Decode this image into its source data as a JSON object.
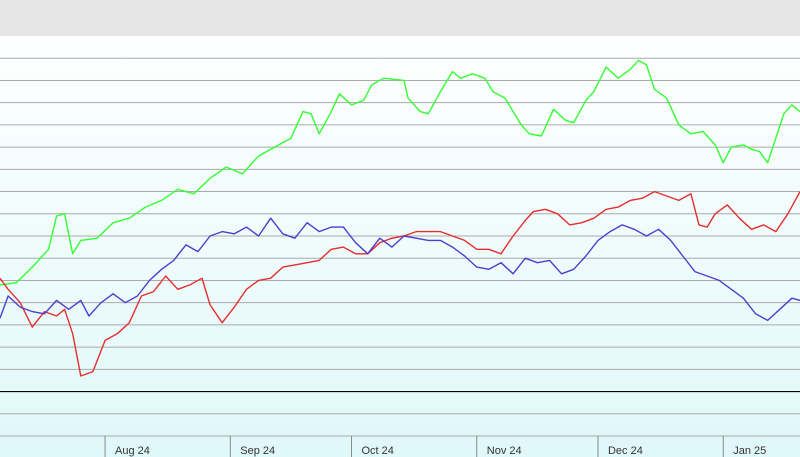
{
  "chart_data": {
    "type": "line",
    "title": "",
    "xlabel": "",
    "ylabel": "",
    "x_tick_labels": [
      "Aug 24",
      "Sep 24",
      "Oct 24",
      "Nov 24",
      "Dec 24",
      "Jan 25"
    ],
    "x_tick_dates": [
      "2024-08-01",
      "2024-09-01",
      "2024-10-01",
      "2024-11-01",
      "2024-12-01",
      "2025-01-01"
    ],
    "xlim": [
      "2024-07-06",
      "2025-01-20"
    ],
    "ylim": [
      0,
      18
    ],
    "grid": true,
    "legend": "none",
    "y_tick_labels_visible": false,
    "baseline_y": 2,
    "colors": {
      "green_series": "#33ff33",
      "red_series": "#e62e2e",
      "blue_series": "#4d3fcc",
      "grid": "#aaaaaa",
      "header": "#e6e6e6",
      "band_top": "#ffffff",
      "band_bottom": "#dff8f9",
      "baseline": "#000000"
    },
    "series": [
      {
        "color_key": "green_series",
        "points": [
          [
            "2024-07-06",
            6.8
          ],
          [
            "2024-07-10",
            6.9
          ],
          [
            "2024-07-14",
            7.6
          ],
          [
            "2024-07-18",
            8.4
          ],
          [
            "2024-07-20",
            9.9
          ],
          [
            "2024-07-22",
            10.0
          ],
          [
            "2024-07-24",
            8.2
          ],
          [
            "2024-07-26",
            8.8
          ],
          [
            "2024-07-30",
            8.9
          ],
          [
            "2024-08-03",
            9.6
          ],
          [
            "2024-08-07",
            9.8
          ],
          [
            "2024-08-11",
            10.3
          ],
          [
            "2024-08-15",
            10.6
          ],
          [
            "2024-08-19",
            11.1
          ],
          [
            "2024-08-23",
            10.9
          ],
          [
            "2024-08-27",
            11.6
          ],
          [
            "2024-08-31",
            12.1
          ],
          [
            "2024-09-04",
            11.8
          ],
          [
            "2024-09-08",
            12.6
          ],
          [
            "2024-09-12",
            13.0
          ],
          [
            "2024-09-16",
            13.4
          ],
          [
            "2024-09-19",
            14.6
          ],
          [
            "2024-09-21",
            14.5
          ],
          [
            "2024-09-23",
            13.6
          ],
          [
            "2024-09-26",
            14.6
          ],
          [
            "2024-09-28",
            15.4
          ],
          [
            "2024-10-01",
            14.9
          ],
          [
            "2024-10-04",
            15.1
          ],
          [
            "2024-10-06",
            15.8
          ],
          [
            "2024-10-09",
            16.1
          ],
          [
            "2024-10-14",
            16.0
          ],
          [
            "2024-10-15",
            15.2
          ],
          [
            "2024-10-18",
            14.6
          ],
          [
            "2024-10-20",
            14.5
          ],
          [
            "2024-10-23",
            15.5
          ],
          [
            "2024-10-26",
            16.4
          ],
          [
            "2024-10-28",
            16.1
          ],
          [
            "2024-10-31",
            16.3
          ],
          [
            "2024-11-03",
            16.1
          ],
          [
            "2024-11-05",
            15.5
          ],
          [
            "2024-11-08",
            15.2
          ],
          [
            "2024-11-10",
            14.6
          ],
          [
            "2024-11-12",
            14.0
          ],
          [
            "2024-11-14",
            13.6
          ],
          [
            "2024-11-17",
            13.5
          ],
          [
            "2024-11-20",
            14.7
          ],
          [
            "2024-11-23",
            14.2
          ],
          [
            "2024-11-25",
            14.1
          ],
          [
            "2024-11-28",
            15.1
          ],
          [
            "2024-11-30",
            15.5
          ],
          [
            "2024-12-03",
            16.6
          ],
          [
            "2024-12-06",
            16.1
          ],
          [
            "2024-12-09",
            16.5
          ],
          [
            "2024-12-11",
            16.9
          ],
          [
            "2024-12-13",
            16.7
          ],
          [
            "2024-12-15",
            15.6
          ],
          [
            "2024-12-18",
            15.2
          ],
          [
            "2024-12-21",
            14.0
          ],
          [
            "2024-12-24",
            13.6
          ],
          [
            "2024-12-27",
            13.7
          ],
          [
            "2024-12-30",
            13.1
          ],
          [
            "2025-01-01",
            12.3
          ],
          [
            "2025-01-03",
            13.0
          ],
          [
            "2025-01-06",
            13.1
          ],
          [
            "2025-01-08",
            12.9
          ],
          [
            "2025-01-10",
            12.8
          ],
          [
            "2025-01-12",
            12.3
          ],
          [
            "2025-01-14",
            13.4
          ],
          [
            "2025-01-16",
            14.5
          ],
          [
            "2025-01-18",
            14.9
          ],
          [
            "2025-01-20",
            14.6
          ]
        ]
      },
      {
        "color_key": "red_series",
        "points": [
          [
            "2024-07-06",
            7.1
          ],
          [
            "2024-07-08",
            6.6
          ],
          [
            "2024-07-11",
            6.0
          ],
          [
            "2024-07-14",
            4.9
          ],
          [
            "2024-07-17",
            5.6
          ],
          [
            "2024-07-20",
            5.4
          ],
          [
            "2024-07-22",
            5.7
          ],
          [
            "2024-07-24",
            4.6
          ],
          [
            "2024-07-26",
            2.7
          ],
          [
            "2024-07-29",
            2.9
          ],
          [
            "2024-08-01",
            4.3
          ],
          [
            "2024-08-04",
            4.6
          ],
          [
            "2024-08-07",
            5.1
          ],
          [
            "2024-08-10",
            6.3
          ],
          [
            "2024-08-13",
            6.5
          ],
          [
            "2024-08-16",
            7.2
          ],
          [
            "2024-08-19",
            6.6
          ],
          [
            "2024-08-22",
            6.8
          ],
          [
            "2024-08-25",
            7.1
          ],
          [
            "2024-08-27",
            5.9
          ],
          [
            "2024-08-30",
            5.1
          ],
          [
            "2024-09-02",
            5.8
          ],
          [
            "2024-09-05",
            6.6
          ],
          [
            "2024-09-08",
            7.0
          ],
          [
            "2024-09-11",
            7.1
          ],
          [
            "2024-09-14",
            7.6
          ],
          [
            "2024-09-17",
            7.7
          ],
          [
            "2024-09-20",
            7.8
          ],
          [
            "2024-09-23",
            7.9
          ],
          [
            "2024-09-26",
            8.4
          ],
          [
            "2024-09-29",
            8.5
          ],
          [
            "2024-10-02",
            8.2
          ],
          [
            "2024-10-05",
            8.2
          ],
          [
            "2024-10-08",
            8.7
          ],
          [
            "2024-10-11",
            8.9
          ],
          [
            "2024-10-14",
            9.0
          ],
          [
            "2024-10-17",
            9.2
          ],
          [
            "2024-10-20",
            9.2
          ],
          [
            "2024-10-23",
            9.2
          ],
          [
            "2024-10-26",
            9.0
          ],
          [
            "2024-10-29",
            8.8
          ],
          [
            "2024-11-01",
            8.4
          ],
          [
            "2024-11-04",
            8.4
          ],
          [
            "2024-11-07",
            8.2
          ],
          [
            "2024-11-10",
            9.0
          ],
          [
            "2024-11-13",
            9.7
          ],
          [
            "2024-11-15",
            10.1
          ],
          [
            "2024-11-18",
            10.2
          ],
          [
            "2024-11-21",
            10.0
          ],
          [
            "2024-11-24",
            9.5
          ],
          [
            "2024-11-27",
            9.6
          ],
          [
            "2024-11-30",
            9.8
          ],
          [
            "2024-12-03",
            10.2
          ],
          [
            "2024-12-06",
            10.3
          ],
          [
            "2024-12-09",
            10.6
          ],
          [
            "2024-12-12",
            10.7
          ],
          [
            "2024-12-15",
            11.0
          ],
          [
            "2024-12-18",
            10.8
          ],
          [
            "2024-12-21",
            10.6
          ],
          [
            "2024-12-24",
            10.9
          ],
          [
            "2024-12-26",
            9.5
          ],
          [
            "2024-12-28",
            9.4
          ],
          [
            "2024-12-30",
            10.0
          ],
          [
            "2025-01-02",
            10.4
          ],
          [
            "2025-01-05",
            9.8
          ],
          [
            "2025-01-08",
            9.3
          ],
          [
            "2025-01-11",
            9.5
          ],
          [
            "2025-01-14",
            9.2
          ],
          [
            "2025-01-17",
            10.0
          ],
          [
            "2025-01-20",
            11.0
          ]
        ]
      },
      {
        "color_key": "blue_series",
        "points": [
          [
            "2024-07-06",
            5.3
          ],
          [
            "2024-07-08",
            6.3
          ],
          [
            "2024-07-11",
            5.8
          ],
          [
            "2024-07-14",
            5.6
          ],
          [
            "2024-07-17",
            5.5
          ],
          [
            "2024-07-20",
            6.1
          ],
          [
            "2024-07-23",
            5.7
          ],
          [
            "2024-07-26",
            6.1
          ],
          [
            "2024-07-28",
            5.4
          ],
          [
            "2024-07-31",
            6.0
          ],
          [
            "2024-08-03",
            6.4
          ],
          [
            "2024-08-06",
            6.0
          ],
          [
            "2024-08-09",
            6.3
          ],
          [
            "2024-08-12",
            7.0
          ],
          [
            "2024-08-15",
            7.5
          ],
          [
            "2024-08-18",
            7.9
          ],
          [
            "2024-08-21",
            8.6
          ],
          [
            "2024-08-24",
            8.3
          ],
          [
            "2024-08-27",
            9.0
          ],
          [
            "2024-08-30",
            9.2
          ],
          [
            "2024-09-02",
            9.1
          ],
          [
            "2024-09-05",
            9.4
          ],
          [
            "2024-09-08",
            9.0
          ],
          [
            "2024-09-11",
            9.8
          ],
          [
            "2024-09-14",
            9.1
          ],
          [
            "2024-09-17",
            8.9
          ],
          [
            "2024-09-20",
            9.6
          ],
          [
            "2024-09-23",
            9.2
          ],
          [
            "2024-09-26",
            9.4
          ],
          [
            "2024-09-29",
            9.4
          ],
          [
            "2024-10-02",
            8.7
          ],
          [
            "2024-10-05",
            8.2
          ],
          [
            "2024-10-08",
            8.9
          ],
          [
            "2024-10-11",
            8.5
          ],
          [
            "2024-10-14",
            9.0
          ],
          [
            "2024-10-17",
            8.9
          ],
          [
            "2024-10-20",
            8.8
          ],
          [
            "2024-10-23",
            8.8
          ],
          [
            "2024-10-26",
            8.5
          ],
          [
            "2024-10-29",
            8.1
          ],
          [
            "2024-11-01",
            7.6
          ],
          [
            "2024-11-04",
            7.5
          ],
          [
            "2024-11-07",
            7.8
          ],
          [
            "2024-11-10",
            7.3
          ],
          [
            "2024-11-13",
            8.0
          ],
          [
            "2024-11-16",
            7.8
          ],
          [
            "2024-11-19",
            7.9
          ],
          [
            "2024-11-22",
            7.3
          ],
          [
            "2024-11-25",
            7.5
          ],
          [
            "2024-11-28",
            8.1
          ],
          [
            "2024-12-01",
            8.8
          ],
          [
            "2024-12-04",
            9.2
          ],
          [
            "2024-12-07",
            9.5
          ],
          [
            "2024-12-10",
            9.3
          ],
          [
            "2024-12-13",
            9.0
          ],
          [
            "2024-12-16",
            9.3
          ],
          [
            "2024-12-19",
            8.8
          ],
          [
            "2024-12-22",
            8.1
          ],
          [
            "2024-12-25",
            7.4
          ],
          [
            "2024-12-28",
            7.2
          ],
          [
            "2024-12-31",
            7.0
          ],
          [
            "2025-01-03",
            6.6
          ],
          [
            "2025-01-06",
            6.2
          ],
          [
            "2025-01-09",
            5.5
          ],
          [
            "2025-01-12",
            5.2
          ],
          [
            "2025-01-15",
            5.7
          ],
          [
            "2025-01-18",
            6.2
          ],
          [
            "2025-01-20",
            6.1
          ]
        ]
      }
    ]
  }
}
